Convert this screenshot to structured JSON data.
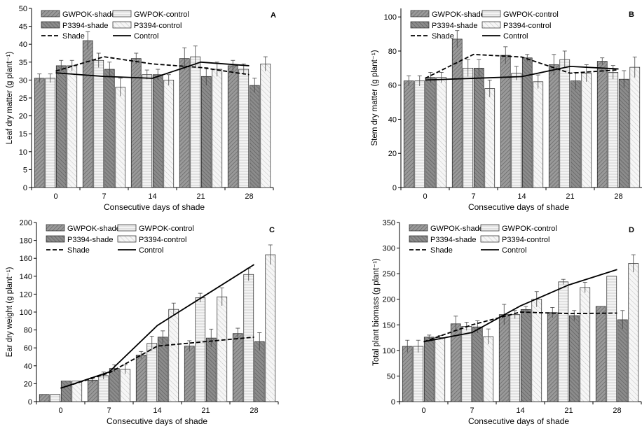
{
  "chart_data": [
    {
      "type": "bar",
      "panel_letter": "A",
      "xlabel": "Consecutive days of shade",
      "ylabel": "Leaf dry matter (g plant⁻¹)",
      "categories": [
        "0",
        "7",
        "14",
        "21",
        "28"
      ],
      "ylim": [
        0,
        50
      ],
      "yticks": [
        0,
        5,
        10,
        15,
        20,
        25,
        30,
        35,
        40,
        45,
        50
      ],
      "legend_position": "top-left",
      "series": [
        {
          "name": "GWPOK-shade",
          "values": [
            30.5,
            41,
            36,
            36,
            34
          ],
          "errors": [
            1.2,
            2.5,
            1.5,
            3,
            1.5
          ]
        },
        {
          "name": "GWPOK-control",
          "values": [
            30.5,
            35.5,
            31.5,
            36.5,
            33
          ],
          "errors": [
            1.2,
            2,
            1.3,
            3,
            1.5
          ]
        },
        {
          "name": "P3394-shade",
          "values": [
            34,
            33,
            31.5,
            31,
            28.5
          ],
          "errors": [
            1.5,
            2,
            1.5,
            2.5,
            2
          ]
        },
        {
          "name": "P3394-control",
          "values": [
            34,
            28,
            30,
            33,
            34.5
          ],
          "errors": [
            1.5,
            2.5,
            1.5,
            2,
            2
          ]
        }
      ],
      "lines": [
        {
          "name": "Shade",
          "values": [
            32.5,
            36.5,
            34.5,
            33.5,
            31.5
          ]
        },
        {
          "name": "Control",
          "values": [
            32,
            31,
            30.5,
            35,
            34
          ]
        }
      ]
    },
    {
      "type": "bar",
      "panel_letter": "B",
      "xlabel": "Consecutive days of shade",
      "ylabel": "Stem dry matter (g plant⁻¹)",
      "categories": [
        "0",
        "7",
        "14",
        "21",
        "28"
      ],
      "ylim": [
        0,
        105
      ],
      "yticks": [
        0,
        20,
        40,
        60,
        80,
        100
      ],
      "legend_position": "top-left",
      "series": [
        {
          "name": "GWPOK-shade",
          "values": [
            62.5,
            87,
            77.5,
            72,
            74
          ],
          "errors": [
            3,
            5,
            5,
            6,
            2
          ]
        },
        {
          "name": "GWPOK-control",
          "values": [
            62.5,
            70,
            67,
            75,
            67.5
          ],
          "errors": [
            3,
            5,
            4,
            5,
            4
          ]
        },
        {
          "name": "P3394-shade",
          "values": [
            64.5,
            70,
            76,
            62.5,
            63.5
          ],
          "errors": [
            3,
            5,
            2,
            5,
            5
          ]
        },
        {
          "name": "P3394-control",
          "values": [
            64.5,
            58,
            62,
            67,
            70.5
          ],
          "errors": [
            3,
            5,
            4,
            5,
            6
          ]
        }
      ],
      "lines": [
        {
          "name": "Shade",
          "values": [
            64,
            78,
            76.5,
            67,
            69
          ]
        },
        {
          "name": "Control",
          "values": [
            63,
            64,
            65,
            71,
            69.5
          ]
        }
      ]
    },
    {
      "type": "bar",
      "panel_letter": "C",
      "xlabel": "Consecutive days of shade",
      "ylabel": "Ear dry weight (g plant⁻¹)",
      "categories": [
        "0",
        "7",
        "14",
        "21",
        "28"
      ],
      "ylim": [
        0,
        200
      ],
      "yticks": [
        0,
        20,
        40,
        60,
        80,
        100,
        120,
        140,
        160,
        180,
        200
      ],
      "legend_position": "top-left",
      "series": [
        {
          "name": "GWPOK-shade",
          "values": [
            8,
            24,
            52,
            62,
            76
          ],
          "errors": [
            0,
            3,
            4,
            6,
            6
          ]
        },
        {
          "name": "GWPOK-control",
          "values": [
            8,
            29,
            65,
            116,
            142
          ],
          "errors": [
            0,
            4,
            8,
            5,
            7
          ]
        },
        {
          "name": "P3394-shade",
          "values": [
            23,
            37,
            72,
            71,
            67
          ],
          "errors": [
            0,
            4,
            7,
            10,
            10
          ]
        },
        {
          "name": "P3394-control",
          "values": [
            23,
            36,
            103,
            117,
            164
          ],
          "errors": [
            0,
            5,
            7,
            10,
            11
          ]
        }
      ],
      "lines": [
        {
          "name": "Shade",
          "values": [
            15,
            32,
            62,
            67,
            72
          ]
        },
        {
          "name": "Control",
          "values": [
            15,
            33,
            85,
            119,
            153
          ]
        }
      ]
    },
    {
      "type": "bar",
      "panel_letter": "D",
      "xlabel": "Consecutive days of shade",
      "ylabel": "Total plant biomass (g plant⁻¹)",
      "categories": [
        "0",
        "7",
        "14",
        "21",
        "28"
      ],
      "ylim": [
        0,
        350
      ],
      "yticks": [
        0,
        50,
        100,
        150,
        200,
        250,
        300,
        350
      ],
      "legend_position": "top-left",
      "series": [
        {
          "name": "GWPOK-shade",
          "values": [
            108,
            152,
            170,
            174,
            186
          ],
          "errors": [
            12,
            15,
            20,
            10,
            0
          ]
        },
        {
          "name": "GWPOK-control",
          "values": [
            108,
            147,
            170,
            234,
            245
          ],
          "errors": [
            12,
            8,
            8,
            5,
            0
          ]
        },
        {
          "name": "P3394-shade",
          "values": [
            126,
            146,
            180,
            168,
            160
          ],
          "errors": [
            4,
            12,
            6,
            10,
            18
          ]
        },
        {
          "name": "P3394-control",
          "values": [
            125,
            127,
            200,
            223,
            270
          ],
          "errors": [
            4,
            15,
            15,
            10,
            17
          ]
        }
      ],
      "lines": [
        {
          "name": "Shade",
          "values": [
            117,
            150,
            175,
            172,
            173
          ]
        },
        {
          "name": "Control",
          "values": [
            117,
            135,
            187,
            228,
            258
          ]
        }
      ]
    }
  ]
}
